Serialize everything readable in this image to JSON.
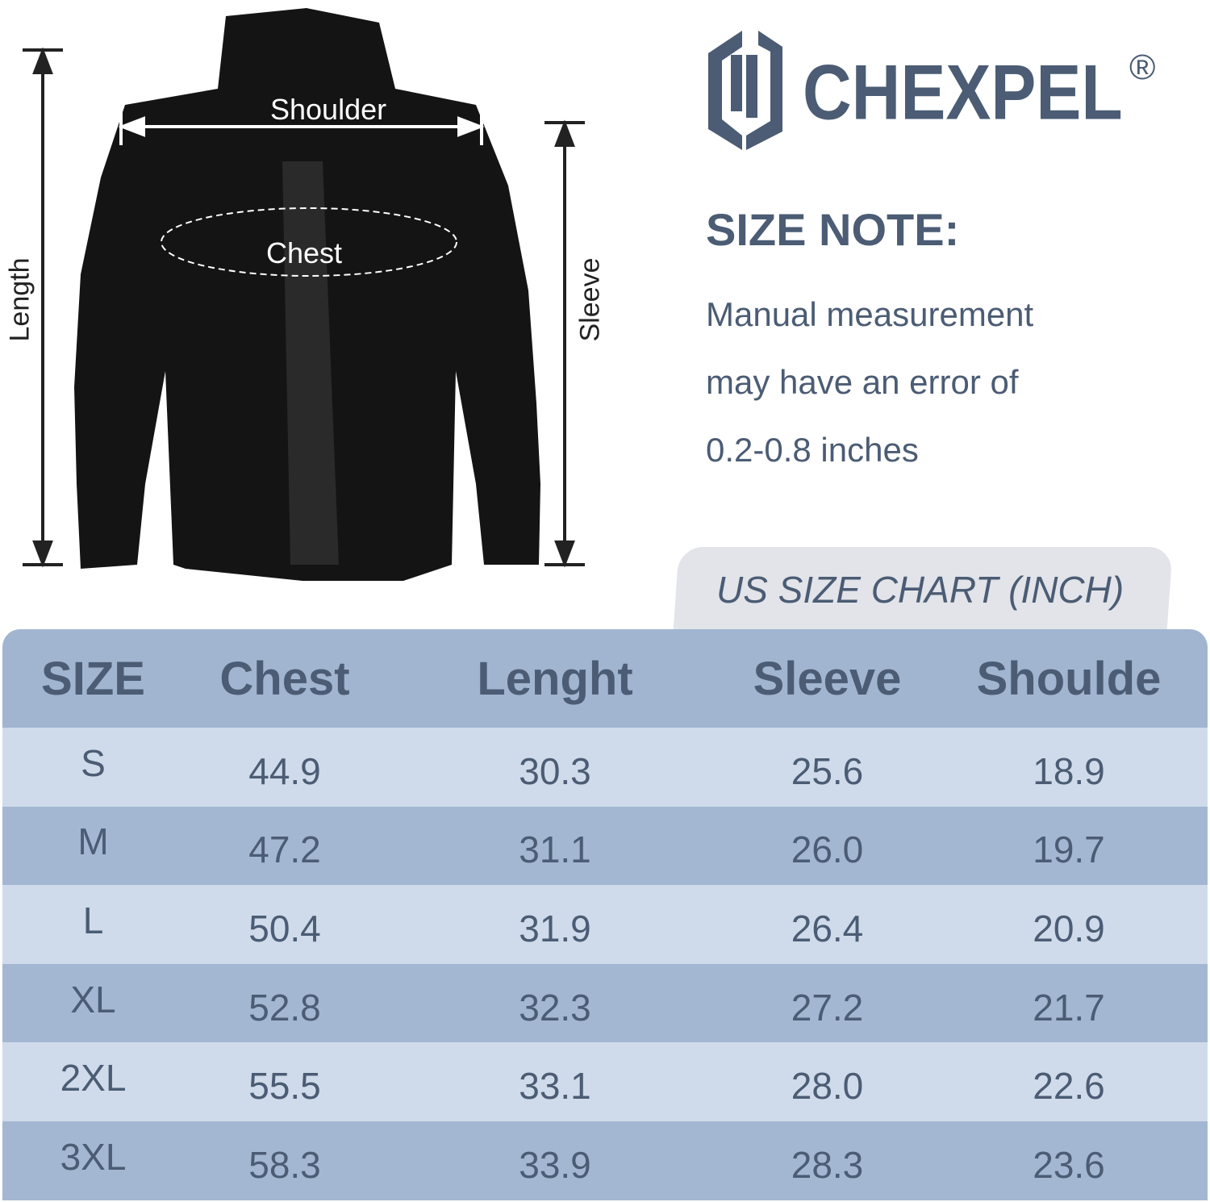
{
  "brand": {
    "name": "CHEXPEL",
    "registered": "®",
    "color": "#4b5c74"
  },
  "diagram": {
    "shoulder": "Shoulder",
    "chest": "Chest",
    "length": "Length",
    "sleeve": "Sleeve"
  },
  "size_note": {
    "title": "SIZE NOTE:",
    "lines": [
      "Manual measurement",
      "may have an error of",
      "0.2-0.8 inches"
    ]
  },
  "chart_tab": "US SIZE CHART (INCH)",
  "colors": {
    "header": "#a1b5d1",
    "row_light": "#cfdbea",
    "row_dark": "#a3b7d2",
    "text": "#4b5c74",
    "tab": "#e2e4e9"
  },
  "table": {
    "headers": [
      "SIZE",
      "Chest",
      "Lenght",
      "Sleeve",
      "Shoulde"
    ],
    "rows": [
      [
        "S",
        "44.9",
        "30.3",
        "25.6",
        "18.9"
      ],
      [
        "M",
        "47.2",
        "31.1",
        "26.0",
        "19.7"
      ],
      [
        "L",
        "50.4",
        "31.9",
        "26.4",
        "20.9"
      ],
      [
        "XL",
        "52.8",
        "32.3",
        "27.2",
        "21.7"
      ],
      [
        "2XL",
        "55.5",
        "33.1",
        "28.0",
        "22.6"
      ],
      [
        "3XL",
        "58.3",
        "33.9",
        "28.3",
        "23.6"
      ]
    ]
  }
}
